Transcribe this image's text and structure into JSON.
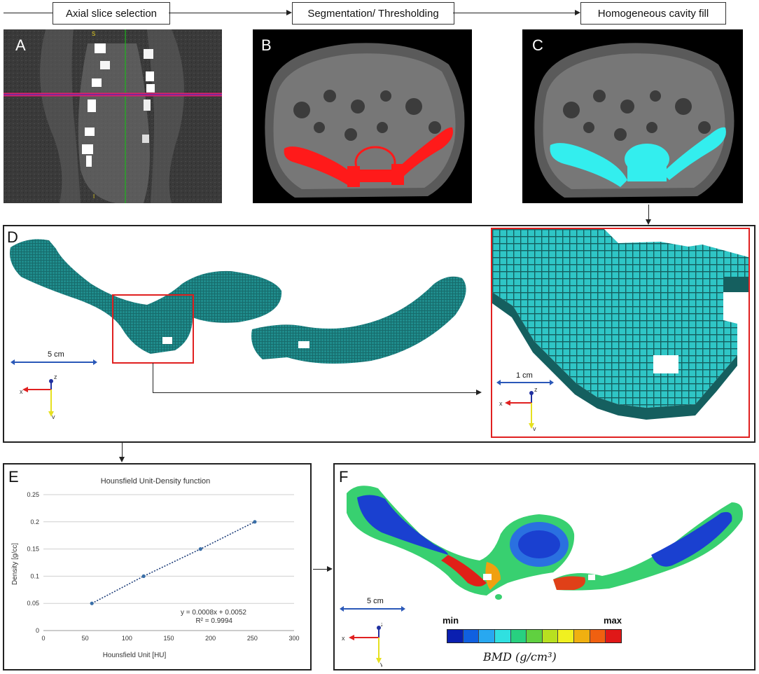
{
  "steps": {
    "step1": "Axial slice selection",
    "step2": "Segmentation/ Thresholding",
    "step3": "Homogeneous cavity fill"
  },
  "panels": {
    "a": "A",
    "b": "B",
    "c": "C",
    "d": "D",
    "e": "E",
    "f": "F"
  },
  "panel_a": {
    "top_mark": "S",
    "bottom_mark": "I"
  },
  "panel_d": {
    "scale_main": "5 cm",
    "scale_zoom": "1 cm"
  },
  "panel_f": {
    "scale": "5 cm",
    "min_label": "min",
    "max_label": "max",
    "bmd_label": "BMD  (g/cm³)",
    "colorbar": [
      "#0a1fb0",
      "#1060e0",
      "#28a8f0",
      "#30e0e0",
      "#28d080",
      "#60d040",
      "#b8e020",
      "#f0f020",
      "#f0b010",
      "#f06010",
      "#e01818"
    ]
  },
  "triad": {
    "x": "x",
    "y": "y",
    "z": "z"
  },
  "colors": {
    "red_mask": "#ff1a1a",
    "cyan_mask": "#33eeee",
    "mesh_teal": "#1f8c8c",
    "mesh_cyan": "#2fc6c6"
  },
  "chart_data": {
    "type": "scatter",
    "title": "Hounsfield Unit-Density function",
    "xlabel": "Hounsfield Unit [HU]",
    "ylabel": "Density [g/cc]",
    "xlim": [
      0,
      300
    ],
    "ylim": [
      0,
      0.25
    ],
    "xticks": [
      "0",
      "50",
      "100",
      "150",
      "200",
      "250",
      "300"
    ],
    "yticks": [
      "0",
      "0.05",
      "0.1",
      "0.15",
      "0.2",
      "0.25"
    ],
    "grid": true,
    "series": [
      {
        "x": [
          58,
          120,
          188,
          253
        ],
        "y": [
          0.05,
          0.1,
          0.15,
          0.2
        ]
      }
    ],
    "trendline": {
      "equation": "y = 0.0008x + 0.0052",
      "r2": "R² = 0.9994"
    }
  }
}
